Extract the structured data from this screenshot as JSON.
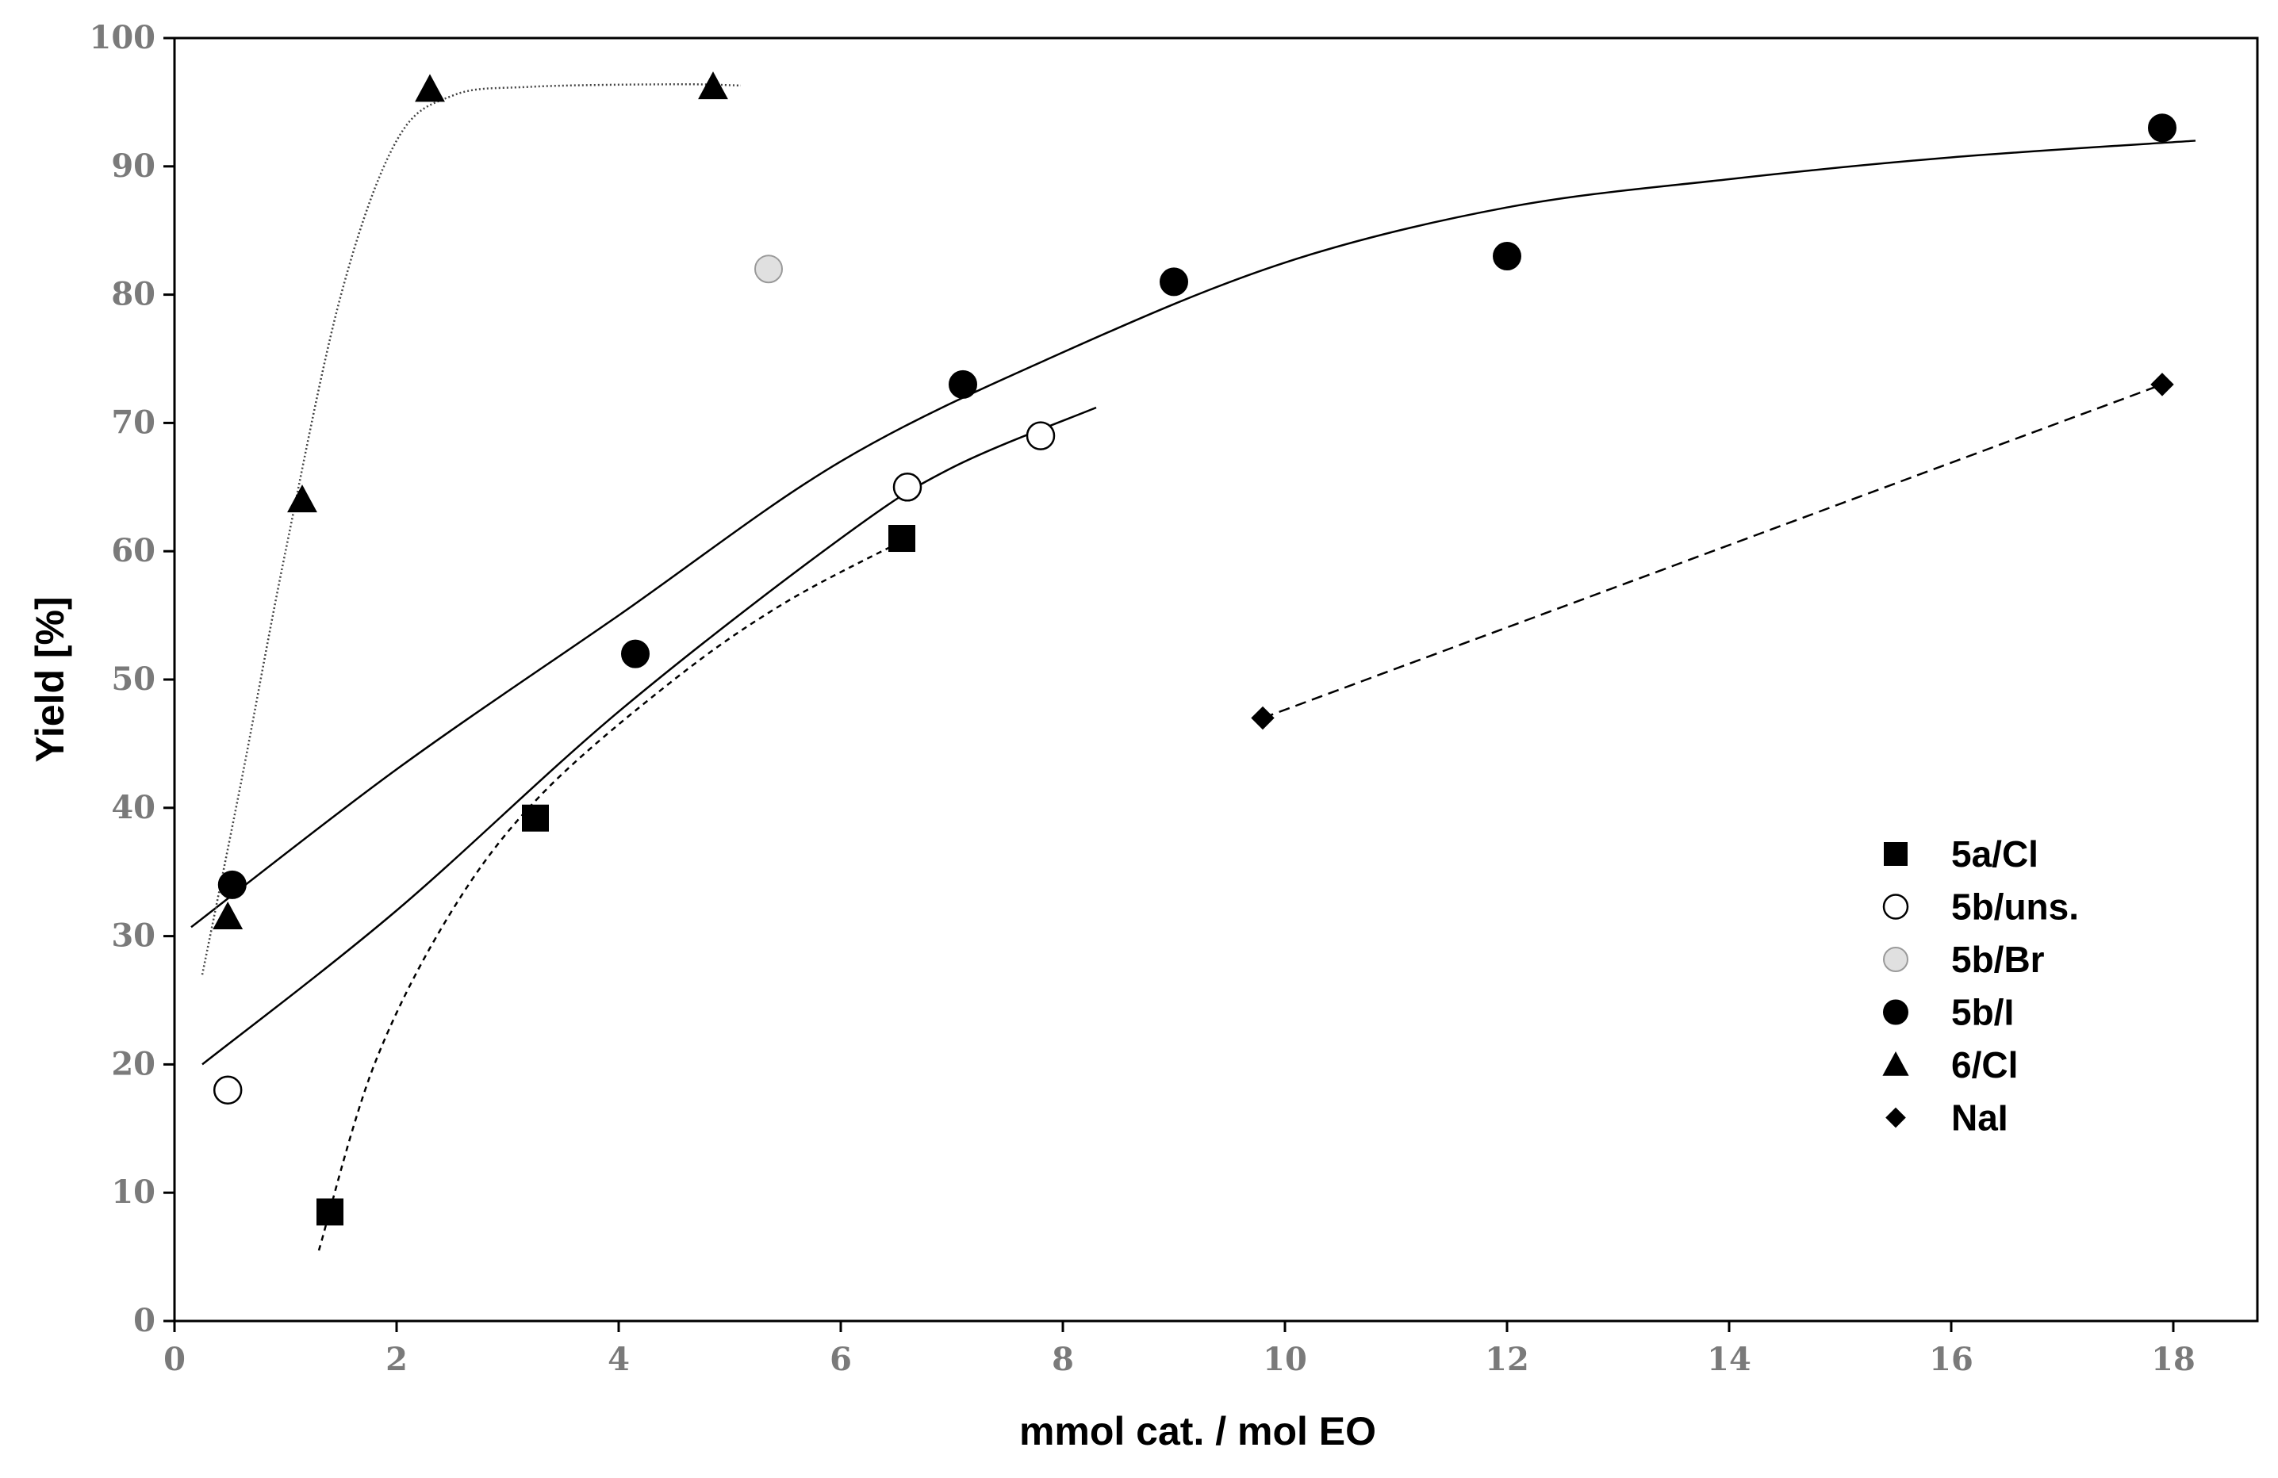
{
  "chart_data": {
    "type": "scatter",
    "title": "",
    "xlabel": "mmol cat. / mol EO",
    "ylabel": "Yield [%]",
    "xlim": [
      0,
      18.8
    ],
    "ylim": [
      0,
      100
    ],
    "xticks": [
      0,
      2,
      4,
      6,
      8,
      10,
      12,
      14,
      16,
      18
    ],
    "yticks": [
      0,
      10,
      20,
      30,
      40,
      50,
      60,
      70,
      80,
      90,
      100
    ],
    "grid": false,
    "legend_position": "lower-right",
    "series": [
      {
        "name": "5a/Cl",
        "marker": "square",
        "fill": "#000000",
        "points": [
          [
            1.4,
            8.5
          ],
          [
            3.25,
            39.2
          ],
          [
            6.55,
            61
          ]
        ],
        "fit": {
          "style": "short-dash",
          "points": [
            [
              1.3,
              5.5
            ],
            [
              1.8,
              20
            ],
            [
              2.5,
              32
            ],
            [
              3.3,
              41
            ],
            [
              4.5,
              50
            ],
            [
              5.5,
              56
            ],
            [
              6.6,
              61
            ]
          ]
        }
      },
      {
        "name": "5b/uns.",
        "marker": "circle-open",
        "fill": "#ffffff",
        "points": [
          [
            0.48,
            18
          ],
          [
            6.6,
            65
          ],
          [
            7.8,
            69
          ]
        ],
        "fit": {
          "style": "solid",
          "points": [
            [
              0.25,
              20
            ],
            [
              2,
              32
            ],
            [
              4,
              47.5
            ],
            [
              6,
              61
            ],
            [
              7,
              66.5
            ],
            [
              8.3,
              71.2
            ]
          ]
        }
      },
      {
        "name": "5b/Br",
        "marker": "circle",
        "fill": "#e0e0e0",
        "points": [
          [
            5.35,
            82
          ]
        ]
      },
      {
        "name": "5b/I",
        "marker": "circle",
        "fill": "#000000",
        "points": [
          [
            0.52,
            34
          ],
          [
            4.15,
            52
          ],
          [
            7.1,
            73
          ],
          [
            9.0,
            81
          ],
          [
            12.0,
            83
          ],
          [
            17.9,
            93
          ]
        ],
        "fit": {
          "style": "solid",
          "points": [
            [
              0.15,
              30.7
            ],
            [
              2,
              43
            ],
            [
              4,
              55
            ],
            [
              6,
              67
            ],
            [
              8,
              75.5
            ],
            [
              10,
              82.5
            ],
            [
              12,
              86.8
            ],
            [
              14,
              89
            ],
            [
              16,
              90.7
            ],
            [
              18.2,
              92
            ]
          ]
        }
      },
      {
        "name": "6/Cl",
        "marker": "triangle",
        "fill": "#000000",
        "points": [
          [
            0.48,
            31.5
          ],
          [
            1.15,
            64
          ],
          [
            2.3,
            96
          ],
          [
            4.85,
            96.2
          ]
        ],
        "fit": {
          "style": "dotted",
          "points": [
            [
              0.25,
              27
            ],
            [
              0.6,
              42
            ],
            [
              1.0,
              60
            ],
            [
              1.5,
              80
            ],
            [
              2.0,
              92
            ],
            [
              2.5,
              95.5
            ],
            [
              3.2,
              96.2
            ],
            [
              4.5,
              96.4
            ],
            [
              5.1,
              96.3
            ]
          ]
        }
      },
      {
        "name": "NaI",
        "marker": "diamond",
        "fill": "#000000",
        "points": [
          [
            9.8,
            47
          ],
          [
            17.9,
            73
          ]
        ],
        "fit": {
          "style": "dashed",
          "points": [
            [
              9.8,
              47
            ],
            [
              17.9,
              73
            ]
          ]
        }
      }
    ]
  }
}
